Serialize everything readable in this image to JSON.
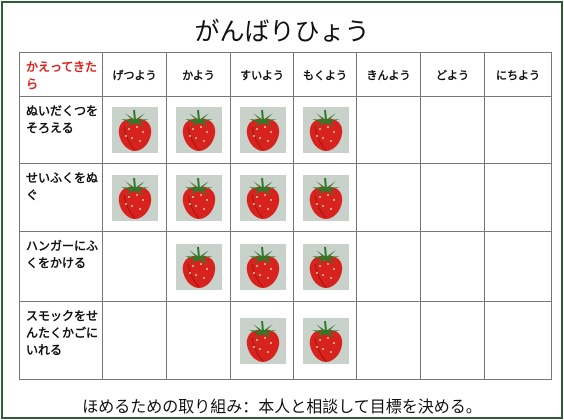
{
  "header": {
    "title": "がんばりひょう"
  },
  "table": {
    "corner_lines": [
      "かえって",
      "きたら"
    ],
    "days": [
      "げつよう",
      "かよう",
      "すいよう",
      "もくよう",
      "きんよう",
      "どよう",
      "にちよう"
    ],
    "rows": [
      {
        "label_lines": [
          "ぬいだく",
          "つをそろ",
          "える"
        ],
        "stickers": [
          false,
          true,
          true,
          true,
          true,
          false,
          false,
          false
        ]
      },
      {
        "label_lines": [
          "せいふく",
          "をぬぐ"
        ],
        "stickers": [
          false,
          true,
          true,
          true,
          true,
          false,
          false,
          false
        ]
      },
      {
        "label_lines": [
          "ハンガー",
          "にふくを",
          "かける"
        ],
        "stickers": [
          false,
          false,
          true,
          true,
          true,
          false,
          false,
          false
        ]
      },
      {
        "label_lines": [
          "スモックを",
          "せんたく",
          "かごにい",
          "れる"
        ],
        "stickers": [
          false,
          false,
          false,
          true,
          true,
          false,
          false,
          false
        ]
      }
    ]
  },
  "footer": {
    "note": "ほめるための取り組み：本人と相談して目標を決める。"
  }
}
